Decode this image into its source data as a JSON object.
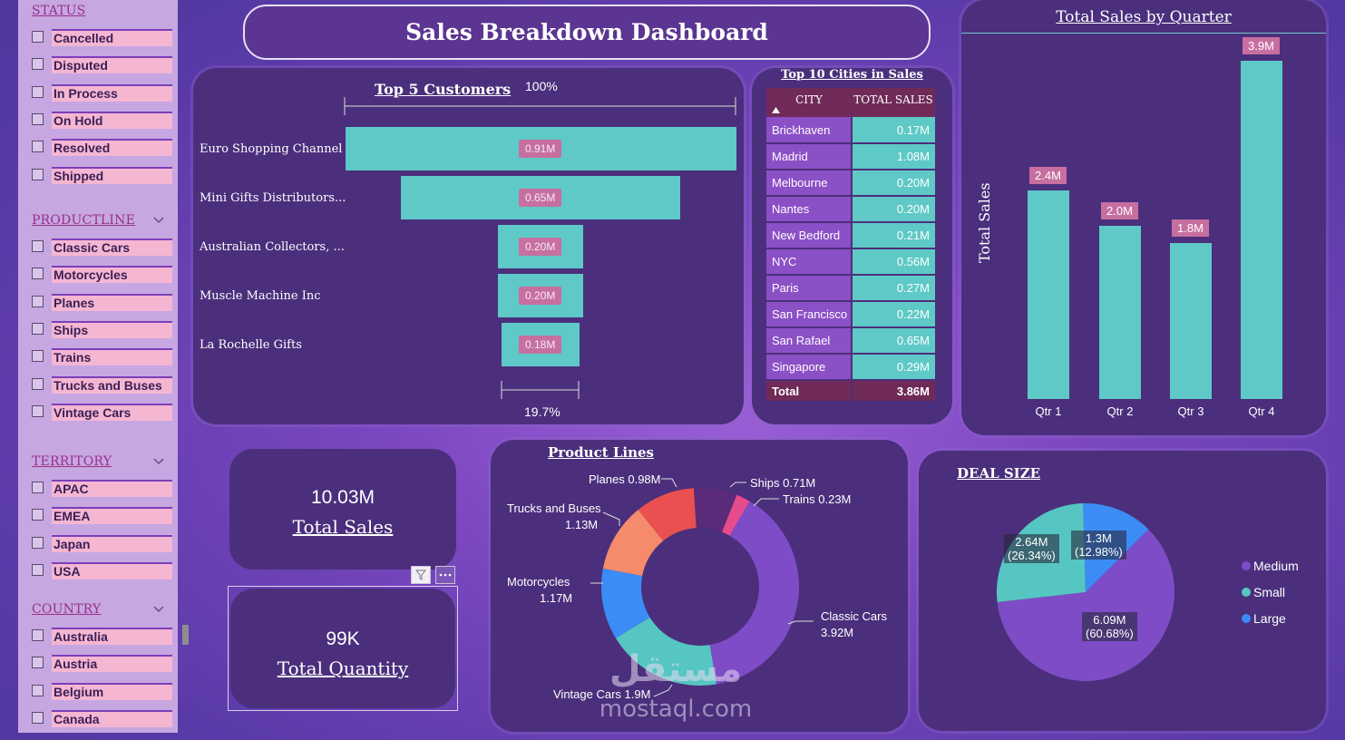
{
  "header": {
    "title": "Sales Breakdown Dashboard"
  },
  "slicers": {
    "status": {
      "title": "STATUS",
      "items": [
        "Cancelled",
        "Disputed",
        "In Process",
        "On Hold",
        "Resolved",
        "Shipped"
      ]
    },
    "productline": {
      "title": "PRODUCTLINE",
      "items": [
        "Classic Cars",
        "Motorcycles",
        "Planes",
        "Ships",
        "Trains",
        "Trucks and Buses",
        "Vintage Cars"
      ]
    },
    "territory": {
      "title": "TERRITORY",
      "items": [
        "APAC",
        "EMEA",
        "Japan",
        "USA"
      ]
    },
    "country": {
      "title": "COUNTRY",
      "items": [
        "Australia",
        "Austria",
        "Belgium",
        "Canada"
      ]
    }
  },
  "top_customers": {
    "title": "Top 5 Customers",
    "top_pct": "100%",
    "bottom_pct": "19.7%",
    "rows": [
      {
        "name": "Euro Shopping Channel",
        "label": "0.91M"
      },
      {
        "name": "Mini Gifts Distributors...",
        "label": "0.65M"
      },
      {
        "name": "Australian Collectors, ...",
        "label": "0.20M"
      },
      {
        "name": "Muscle Machine Inc",
        "label": "0.20M"
      },
      {
        "name": "La Rochelle Gifts",
        "label": "0.18M"
      }
    ]
  },
  "cities": {
    "title": "Top 10 Cities in Sales",
    "col_city": "CITY",
    "col_sales": "TOTAL SALES",
    "rows": [
      {
        "city": "Brickhaven",
        "sales": "0.17M"
      },
      {
        "city": "Madrid",
        "sales": "1.08M"
      },
      {
        "city": "Melbourne",
        "sales": "0.20M"
      },
      {
        "city": "Nantes",
        "sales": "0.20M"
      },
      {
        "city": "New Bedford",
        "sales": "0.21M"
      },
      {
        "city": "NYC",
        "sales": "0.56M"
      },
      {
        "city": "Paris",
        "sales": "0.27M"
      },
      {
        "city": "San Francisco",
        "sales": "0.22M"
      },
      {
        "city": "San Rafael",
        "sales": "0.65M"
      },
      {
        "city": "Singapore",
        "sales": "0.29M"
      }
    ],
    "total_label": "Total",
    "total_value": "3.86M"
  },
  "quarters": {
    "title": "Total Sales by Quarter",
    "ylabel": "Total Sales",
    "bars": [
      {
        "cat": "Qtr 1",
        "label": "2.4M"
      },
      {
        "cat": "Qtr 2",
        "label": "2.0M"
      },
      {
        "cat": "Qtr 3",
        "label": "1.8M"
      },
      {
        "cat": "Qtr 4",
        "label": "3.9M"
      }
    ]
  },
  "kpi": {
    "sales_value": "10.03M",
    "sales_caption": "Total Sales",
    "qty_value": "99K",
    "qty_caption": "Total Quantity"
  },
  "product_lines": {
    "title": "Product Lines",
    "labels": {
      "planes": "Planes 0.98M",
      "ships": "Ships 0.71M",
      "trains": "Trains 0.23M",
      "trucks1": "Trucks and Buses",
      "trucks2": "1.13M",
      "moto1": "Motorcycles",
      "moto2": "1.17M",
      "classic1": "Classic Cars",
      "classic2": "3.92M",
      "vintage": "Vintage Cars 1.9M"
    }
  },
  "deal_size": {
    "title": "DEAL SIZE",
    "legend": [
      "Medium",
      "Small",
      "Large"
    ],
    "small_l1": "2.64M",
    "small_l2": "(26.34%)",
    "large_l1": "1.3M",
    "large_l2": "(12.98%)",
    "medium_l1": "6.09M",
    "medium_l2": "(60.68%)"
  },
  "watermark": {
    "arabic": "مستقل",
    "latin": "mostaql.com"
  },
  "colors": {
    "teal": "#5ec9c6",
    "pink_label": "#c76fa0",
    "panel": "#4b2f7c",
    "medium": "#7d4cc6",
    "small": "#56c6c2",
    "large": "#3b8cf5",
    "planes": "#e9504f",
    "ships": "#5b2a78",
    "trains": "#e64b8d",
    "trucks": "#f58b6b",
    "motorcycles": "#3b8cf5",
    "vintage": "#56c6c2",
    "classic": "#7d4cc6"
  },
  "chart_data": [
    {
      "type": "bar",
      "title": "Top 5 Customers",
      "categories": [
        "Euro Shopping Channel",
        "Mini Gifts Distributors...",
        "Australian Collectors, ...",
        "Muscle Machine Inc",
        "La Rochelle Gifts"
      ],
      "values": [
        0.91,
        0.65,
        0.2,
        0.2,
        0.18
      ]
    },
    {
      "type": "bar",
      "title": "Total Sales by Quarter",
      "categories": [
        "Qtr 1",
        "Qtr 2",
        "Qtr 3",
        "Qtr 4"
      ],
      "values": [
        2.4,
        2.0,
        1.8,
        3.9
      ],
      "ylabel": "Total Sales"
    },
    {
      "type": "pie",
      "title": "Product Lines",
      "categories": [
        "Classic Cars",
        "Vintage Cars",
        "Motorcycles",
        "Trucks and Buses",
        "Planes",
        "Ships",
        "Trains"
      ],
      "values": [
        3.92,
        1.9,
        1.17,
        1.13,
        0.98,
        0.71,
        0.23
      ]
    },
    {
      "type": "pie",
      "title": "DEAL SIZE",
      "categories": [
        "Medium",
        "Small",
        "Large"
      ],
      "values": [
        6.09,
        2.64,
        1.3
      ]
    }
  ]
}
